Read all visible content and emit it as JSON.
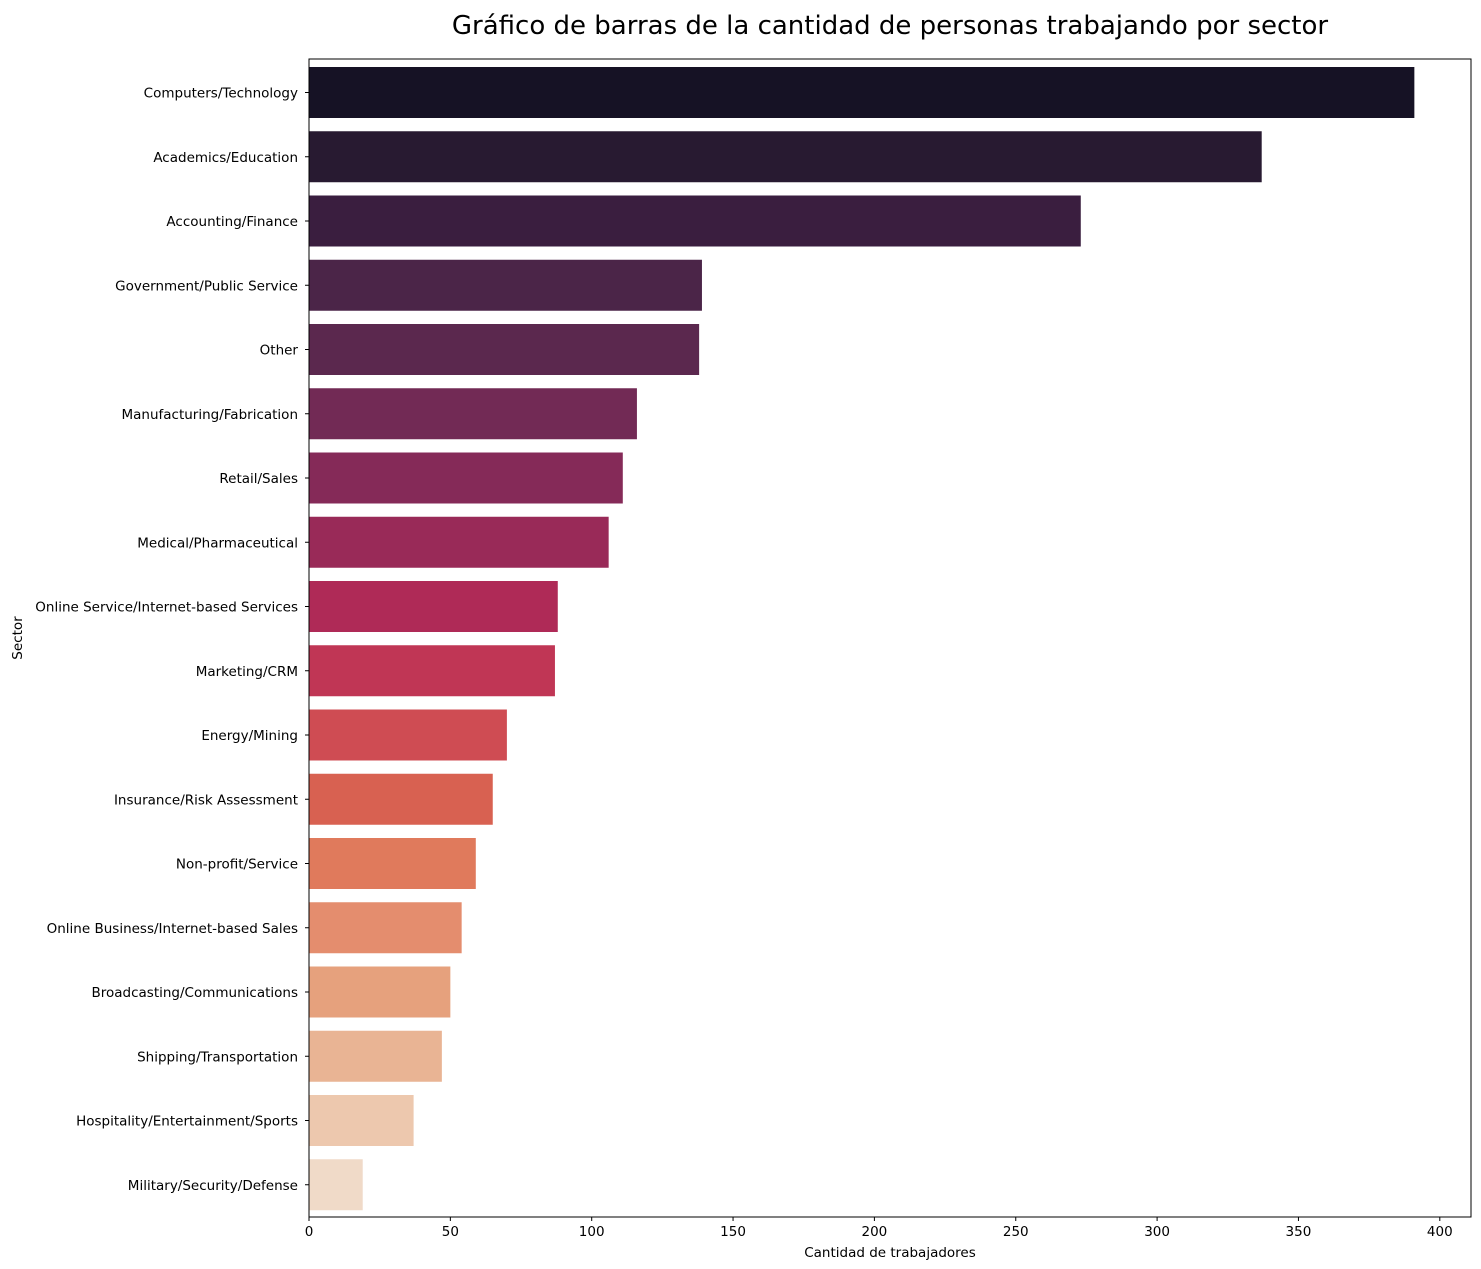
{
  "chart_data": {
    "type": "bar",
    "orientation": "horizontal",
    "title": "Gráfico de barras de la cantidad de personas trabajando por sector",
    "xlabel": "Cantidad de trabajadores",
    "ylabel": "Sector",
    "xlim": [
      0,
      411
    ],
    "xticks": [
      0,
      50,
      100,
      150,
      200,
      250,
      300,
      350,
      400
    ],
    "grid": false,
    "legend": "none",
    "categories": [
      "Computers/Technology",
      "Academics/Education",
      "Accounting/Finance",
      "Government/Public Service",
      "Other",
      "Manufacturing/Fabrication",
      "Retail/Sales",
      "Medical/Pharmaceutical",
      "Online Service/Internet-based Services",
      "Marketing/CRM",
      "Energy/Mining",
      "Insurance/Risk Assessment",
      "Non-profit/Service",
      "Online Business/Internet-based Sales",
      "Broadcasting/Communications",
      "Shipping/Transportation",
      "Hospitality/Entertainment/Sports",
      "Military/Security/Defense"
    ],
    "values": [
      391,
      337,
      273,
      139,
      138,
      116,
      111,
      106,
      88,
      87,
      70,
      65,
      59,
      54,
      50,
      47,
      37,
      19
    ],
    "colors": [
      "#161225",
      "#281a31",
      "#3a1e3f",
      "#4b2548",
      "#5b284e",
      "#722a55",
      "#852a58",
      "#992a58",
      "#af2a57",
      "#c03655",
      "#cf4c53",
      "#d86151",
      "#e07a5c",
      "#e48d6e",
      "#e6a17d",
      "#e9b494",
      "#edc8ae",
      "#f0dac8"
    ]
  }
}
